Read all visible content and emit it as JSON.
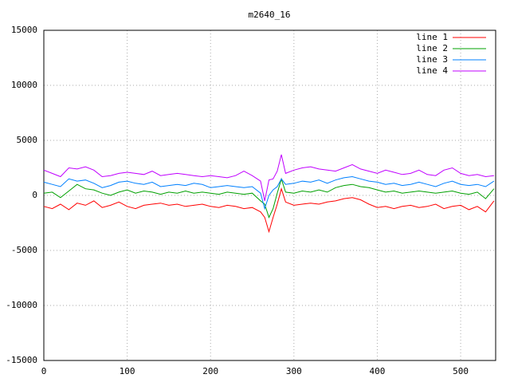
{
  "chart_data": {
    "type": "line",
    "title": "m2640_16",
    "x": [
      0,
      10,
      20,
      30,
      40,
      50,
      60,
      70,
      80,
      90,
      100,
      110,
      120,
      130,
      140,
      150,
      160,
      170,
      180,
      190,
      200,
      210,
      220,
      230,
      240,
      250,
      260,
      265,
      270,
      275,
      280,
      285,
      290,
      300,
      310,
      320,
      330,
      340,
      350,
      360,
      370,
      380,
      390,
      400,
      410,
      420,
      430,
      440,
      450,
      460,
      470,
      480,
      490,
      500,
      510,
      520,
      530,
      540
    ],
    "series": [
      {
        "name": "line 1",
        "color": "#ff0000",
        "values": [
          -1000,
          -1200,
          -800,
          -1300,
          -700,
          -900,
          -500,
          -1100,
          -900,
          -600,
          -1000,
          -1200,
          -900,
          -800,
          -700,
          -900,
          -800,
          -1000,
          -900,
          -800,
          -1000,
          -1100,
          -900,
          -1000,
          -1200,
          -1100,
          -1500,
          -2000,
          -3300,
          -2000,
          -800,
          600,
          -600,
          -900,
          -800,
          -700,
          -800,
          -600,
          -500,
          -300,
          -200,
          -400,
          -800,
          -1100,
          -1000,
          -1200,
          -1000,
          -900,
          -1100,
          -1000,
          -800,
          -1200,
          -1000,
          -900,
          -1300,
          -1000,
          -1500,
          -500
        ]
      },
      {
        "name": "line 2",
        "color": "#00a000",
        "values": [
          200,
          300,
          -200,
          400,
          1000,
          600,
          500,
          200,
          0,
          300,
          500,
          200,
          400,
          300,
          100,
          300,
          200,
          400,
          200,
          300,
          200,
          100,
          300,
          200,
          100,
          200,
          -500,
          -800,
          -2000,
          -1200,
          200,
          1500,
          300,
          200,
          400,
          300,
          500,
          300,
          700,
          900,
          1000,
          800,
          700,
          500,
          300,
          400,
          200,
          300,
          400,
          300,
          200,
          300,
          400,
          200,
          100,
          300,
          -300,
          600
        ]
      },
      {
        "name": "line 3",
        "color": "#0080ff",
        "values": [
          1200,
          1000,
          800,
          1500,
          1300,
          1400,
          1100,
          700,
          900,
          1200,
          1300,
          1100,
          1000,
          1200,
          800,
          900,
          1000,
          900,
          1100,
          1000,
          700,
          800,
          900,
          800,
          700,
          800,
          200,
          -1200,
          0,
          500,
          800,
          1500,
          1000,
          1100,
          1300,
          1200,
          1400,
          1100,
          1400,
          1600,
          1700,
          1500,
          1300,
          1200,
          1000,
          1100,
          900,
          1000,
          1200,
          1000,
          800,
          1100,
          1300,
          1000,
          900,
          1000,
          800,
          1300
        ]
      },
      {
        "name": "line 4",
        "color": "#c000ff",
        "values": [
          2300,
          2000,
          1700,
          2500,
          2400,
          2600,
          2300,
          1700,
          1800,
          2000,
          2100,
          2000,
          1900,
          2200,
          1800,
          1900,
          2000,
          1900,
          1800,
          1700,
          1800,
          1700,
          1600,
          1800,
          2200,
          1800,
          1300,
          -500,
          1400,
          1500,
          2200,
          3700,
          2000,
          2300,
          2500,
          2600,
          2400,
          2300,
          2200,
          2500,
          2800,
          2400,
          2200,
          2000,
          2300,
          2100,
          1900,
          2000,
          2300,
          1900,
          1800,
          2300,
          2500,
          2000,
          1800,
          1900,
          1700,
          1800
        ]
      }
    ],
    "xlim": [
      0,
      542
    ],
    "ylim": [
      -15000,
      15000
    ],
    "xticks": [
      0,
      100,
      200,
      300,
      400,
      500
    ],
    "yticks": [
      -15000,
      -10000,
      -5000,
      0,
      5000,
      10000,
      15000
    ],
    "grid": true,
    "legend": "top-right"
  }
}
